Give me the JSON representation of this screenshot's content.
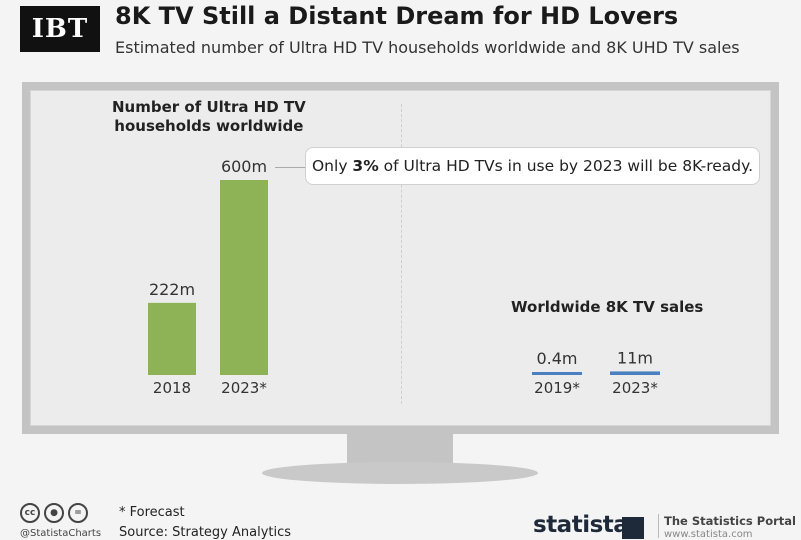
{
  "header": {
    "logo_text": "IBT",
    "title": "8K TV Still a Distant Dream for HD Lovers",
    "subtitle": "Estimated number of Ultra HD TV households worldwide and 8K UHD TV sales"
  },
  "chart_data": [
    {
      "type": "bar",
      "title_line1": "Number of Ultra HD TV",
      "title_line2": "households worldwide",
      "categories": [
        "2018",
        "2023*"
      ],
      "values": [
        222,
        600
      ],
      "value_labels": [
        "222m",
        "600m"
      ],
      "unit": "m",
      "color": "#8db356",
      "ylim": [
        0,
        600
      ]
    },
    {
      "type": "bar",
      "title": "Worldwide 8K TV sales",
      "categories": [
        "2019*",
        "2023*"
      ],
      "values": [
        0.4,
        11
      ],
      "value_labels": [
        "0.4m",
        "11m"
      ],
      "unit": "m",
      "color": "#4a7fc0",
      "ylim": [
        0,
        600
      ]
    }
  ],
  "callout": {
    "prefix": "Only ",
    "highlight": "3%",
    "suffix": " of Ultra HD TVs in use by 2023 will be 8K-ready."
  },
  "footer": {
    "forecast_note": "* Forecast",
    "source": "Source: Strategy Analytics",
    "license_icons": [
      "cc-icon",
      "person-icon",
      "equals-icon"
    ],
    "handle": "@StatistaCharts",
    "brand": "statista",
    "portal": "The Statistics Portal",
    "portal_url": "www.statista.com"
  }
}
